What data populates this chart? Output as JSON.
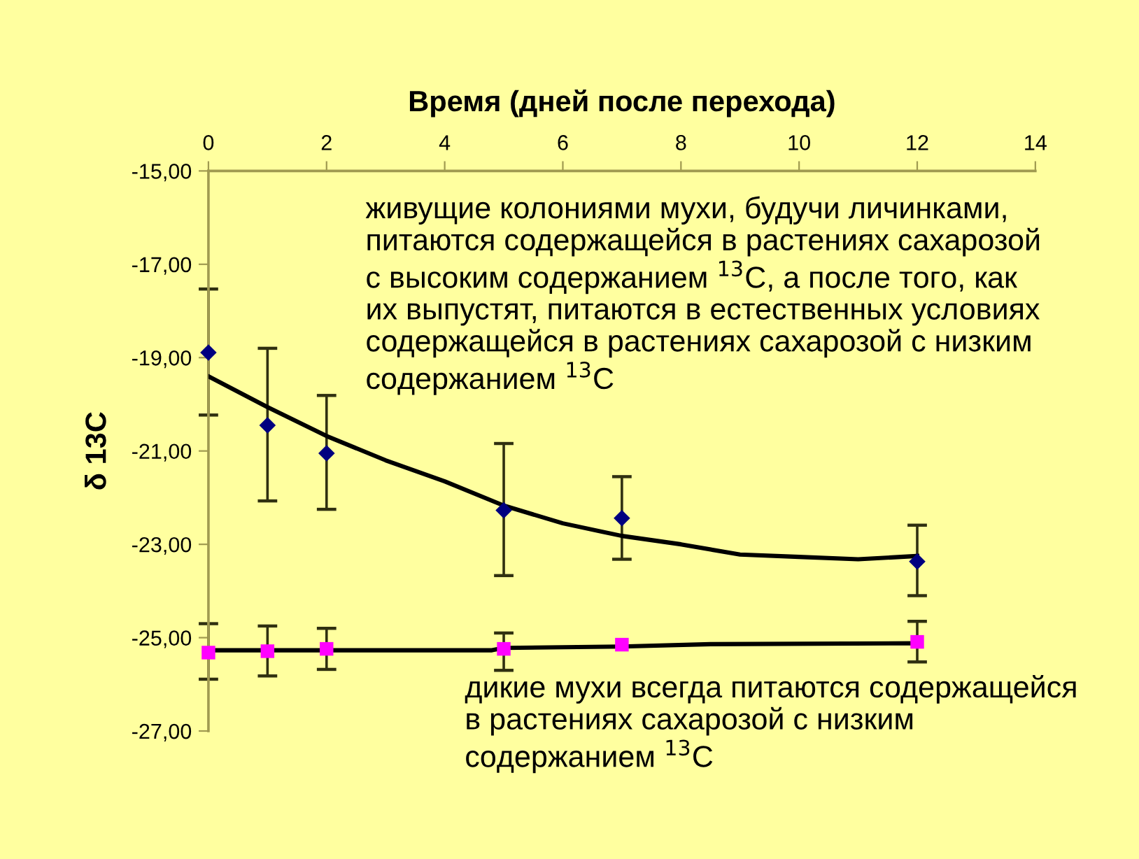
{
  "chart_data": {
    "type": "scatter",
    "xlabel": "Время (дней после перехода)",
    "ylabel": "δ 13C",
    "xlim": [
      0,
      14
    ],
    "xticks": [
      0,
      2,
      4,
      6,
      8,
      10,
      12,
      14
    ],
    "ylim": [
      -27,
      -15
    ],
    "yticks": [
      {
        "value": -15,
        "label": "-15,00"
      },
      {
        "value": -17,
        "label": "-17,00"
      },
      {
        "value": -19,
        "label": "-19,00"
      },
      {
        "value": -21,
        "label": "-21,00"
      },
      {
        "value": -23,
        "label": "-23,00"
      },
      {
        "value": -25,
        "label": "-25,00"
      },
      {
        "value": -27,
        "label": "-27,00"
      }
    ],
    "grid": false,
    "legend": false,
    "series": [
      {
        "type": "line",
        "color": "#000000",
        "marker": "none",
        "x": [
          0,
          1,
          2,
          3,
          4,
          5,
          6,
          7,
          8,
          9,
          10,
          11,
          12
        ],
        "values": [
          -19.4,
          -20.06,
          -20.68,
          -21.2,
          -21.65,
          -22.17,
          -22.55,
          -22.82,
          -23.0,
          -23.22,
          -23.27,
          -23.32,
          -23.25
        ]
      },
      {
        "type": "line",
        "color": "#000000",
        "marker": "none",
        "x": [
          0,
          4.8,
          5,
          7,
          8.5,
          12
        ],
        "values": [
          -25.27,
          -25.27,
          -25.22,
          -25.19,
          -25.14,
          -25.12
        ]
      },
      {
        "color": "#000080",
        "marker": "diamond",
        "x": [
          0,
          1,
          2,
          5,
          7,
          12
        ],
        "values": [
          -18.89,
          -20.45,
          -21.05,
          -22.27,
          -22.44,
          -23.37
        ],
        "errors": [
          [
            -20.23,
            -17.53
          ],
          [
            -22.07,
            -18.8
          ],
          [
            -22.25,
            -19.81
          ],
          [
            -23.67,
            -20.84
          ],
          [
            -23.32,
            -21.55
          ],
          [
            -24.1,
            -22.59
          ]
        ]
      },
      {
        "color": "#ff00ff",
        "marker": "square",
        "x": [
          0,
          1,
          2,
          5,
          7,
          12
        ],
        "values": [
          -25.32,
          -25.29,
          -25.24,
          -25.24,
          -25.15,
          -25.09
        ],
        "errors": [
          [
            -25.89,
            -24.7
          ],
          [
            -25.82,
            -24.75
          ],
          [
            -25.68,
            -24.8
          ],
          [
            -25.7,
            -24.9
          ],
          null,
          [
            -25.52,
            -24.65
          ]
        ]
      }
    ],
    "annotations": [
      "живущие колониями мухи, будучи личинками,\nпитаются содержащейся в растениях сахарозой\nс высоким содержанием $^{13}$C, а после того, как\nих выпустят, питаются в естественных условиях\nсодержащейся в растениях сахарозой с низким\nсодержанием $^{13}$C",
      "дикие мухи всегда питаются содержащейся\nв растениях сахарозой с низким\nсодержанием $^{13}$C"
    ]
  }
}
